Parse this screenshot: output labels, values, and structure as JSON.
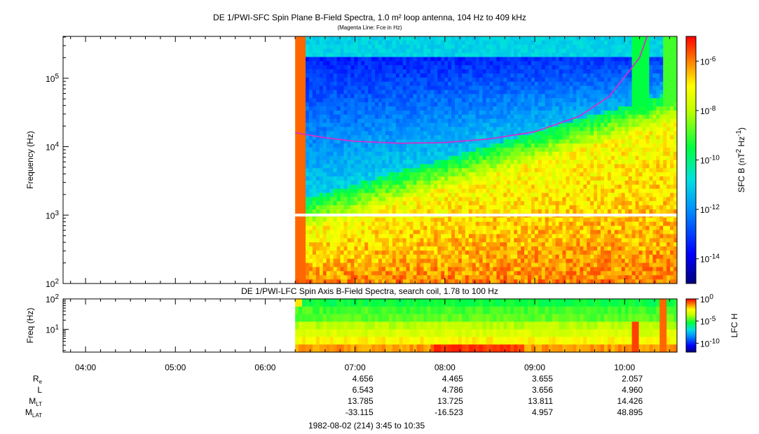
{
  "chart_data": [
    {
      "type": "heatmap",
      "title": "DE 1/PWI-SFC  Spin Plane B-Field Spectra, 1.0 m² loop antenna, 104 Hz to 409 kHz",
      "subtitle": "(Magenta Line: Fce in Hz)",
      "ylabel": "Frequency (Hz)",
      "yscale": "log",
      "ylim": [
        100,
        409000
      ],
      "yticks": [
        {
          "v": 100,
          "t": "10^2"
        },
        {
          "v": 1000,
          "t": "10^3"
        },
        {
          "v": 10000,
          "t": "10^4"
        },
        {
          "v": 100000,
          "t": "10^5"
        }
      ],
      "colorbar": {
        "label": "SFC B (nT^2 Hz^-1)",
        "scale": "log",
        "ticks": [
          {
            "v": -6,
            "t": "10^-6"
          },
          {
            "v": -8,
            "t": "10^-8"
          },
          {
            "v": -10,
            "t": "10^-10"
          },
          {
            "v": -12,
            "t": "10^-12"
          },
          {
            "v": -14,
            "t": "10^-14"
          }
        ],
        "range": [
          -15,
          -5
        ]
      },
      "data_start_time": "06:20",
      "fce_line": {
        "name": "Fce",
        "color": "#cc33cc",
        "x": [
          "06:20",
          "06:40",
          "07:00",
          "07:30",
          "08:00",
          "08:30",
          "09:00",
          "09:30",
          "09:50",
          "10:10",
          "10:15"
        ],
        "y": [
          16000,
          13500,
          12000,
          11200,
          11500,
          13000,
          16500,
          28000,
          55000,
          200000,
          409000
        ]
      }
    },
    {
      "type": "heatmap",
      "title": "DE 1/PWI-LFC  Spin Axis B-Field Spectra, search coil, 1.78 to 100 Hz",
      "ylabel": "Freq (Hz)",
      "yscale": "log",
      "ylim": [
        1.78,
        100
      ],
      "yticks": [
        {
          "v": 10,
          "t": "10^1"
        },
        {
          "v": 100,
          "t": "10^2"
        }
      ],
      "colorbar": {
        "label": "LFC H",
        "scale": "log",
        "ticks": [
          {
            "v": 0,
            "t": "10^0"
          },
          {
            "v": -5,
            "t": "10^-5"
          },
          {
            "v": -10,
            "t": "10^-10"
          }
        ],
        "range": [
          -12,
          0
        ]
      },
      "data_start_time": "06:20"
    }
  ],
  "time_axis": {
    "tick_labels": [
      "04:00",
      "05:00",
      "06:00",
      "07:00",
      "08:00",
      "09:00",
      "10:00"
    ],
    "start": "03:45",
    "end": "10:35",
    "footer": "1982-08-02 (214) 3:45 to 10:35"
  },
  "ephemeris": {
    "rows": [
      {
        "name": "R",
        "sub": "e",
        "values": [
          "4.656",
          "4.465",
          "3.655",
          "2.057"
        ]
      },
      {
        "name": "L",
        "sub": "",
        "values": [
          "6.543",
          "4.786",
          "3.656",
          "4.960"
        ]
      },
      {
        "name": "M",
        "sub": "LT",
        "values": [
          "13.785",
          "13.725",
          "13.811",
          "14.426"
        ]
      },
      {
        "name": "M",
        "sub": "LAT",
        "values": [
          "-33.115",
          "-16.523",
          "4.957",
          "48.895"
        ]
      }
    ],
    "times": [
      "07:00",
      "08:00",
      "09:00",
      "10:00"
    ]
  }
}
